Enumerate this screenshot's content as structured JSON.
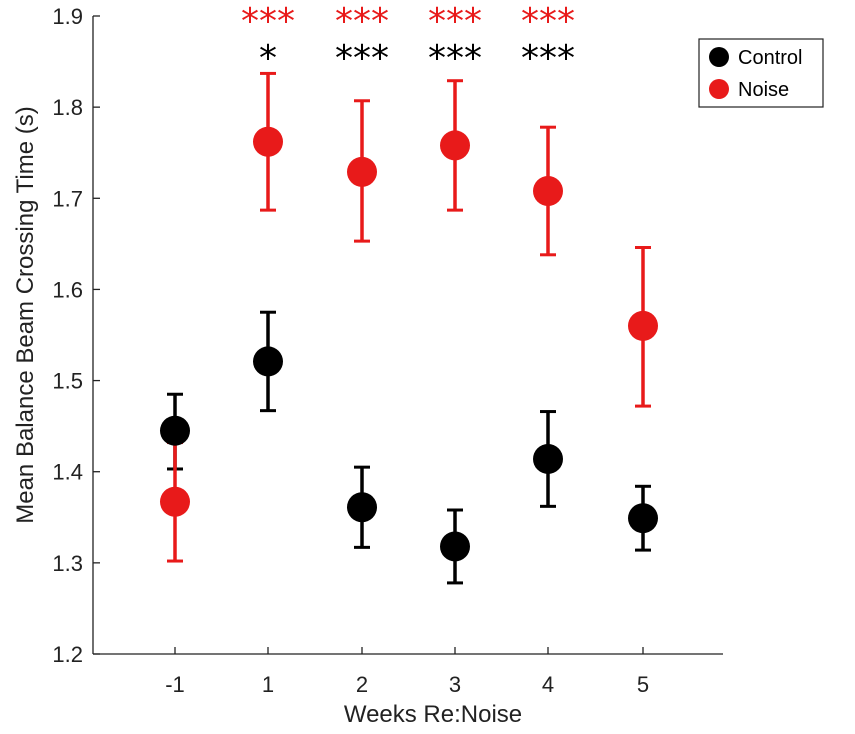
{
  "chart_data": {
    "type": "scatter",
    "title": "",
    "xlabel": "Weeks Re:Noise",
    "ylabel": "Mean Balance Beam Crossing Time (s)",
    "categories": [
      "-1",
      "1",
      "2",
      "3",
      "4",
      "5"
    ],
    "ylim": [
      1.2,
      1.9
    ],
    "yticks": [
      "1.2",
      "1.3",
      "1.4",
      "1.5",
      "1.6",
      "1.7",
      "1.8",
      "1.9"
    ],
    "grid": false,
    "legend_position": "top-right",
    "series": [
      {
        "name": "Control",
        "color": "#000000",
        "values": [
          1.445,
          1.521,
          1.361,
          1.318,
          1.414,
          1.349
        ],
        "error_low": [
          1.403,
          1.467,
          1.317,
          1.278,
          1.362,
          1.314
        ],
        "error_high": [
          1.485,
          1.575,
          1.405,
          1.358,
          1.466,
          1.384
        ]
      },
      {
        "name": "Noise",
        "color": "#e81a1a",
        "values": [
          1.367,
          1.762,
          1.729,
          1.758,
          1.708,
          1.56
        ],
        "error_low": [
          1.302,
          1.687,
          1.653,
          1.687,
          1.638,
          1.472
        ],
        "error_high": [
          1.432,
          1.837,
          1.807,
          1.829,
          1.778,
          1.646
        ]
      }
    ],
    "significance": {
      "noise": [
        "",
        "***",
        "***",
        "***",
        "***",
        ""
      ],
      "control": [
        "",
        "*",
        "***",
        "***",
        "***",
        ""
      ]
    }
  }
}
